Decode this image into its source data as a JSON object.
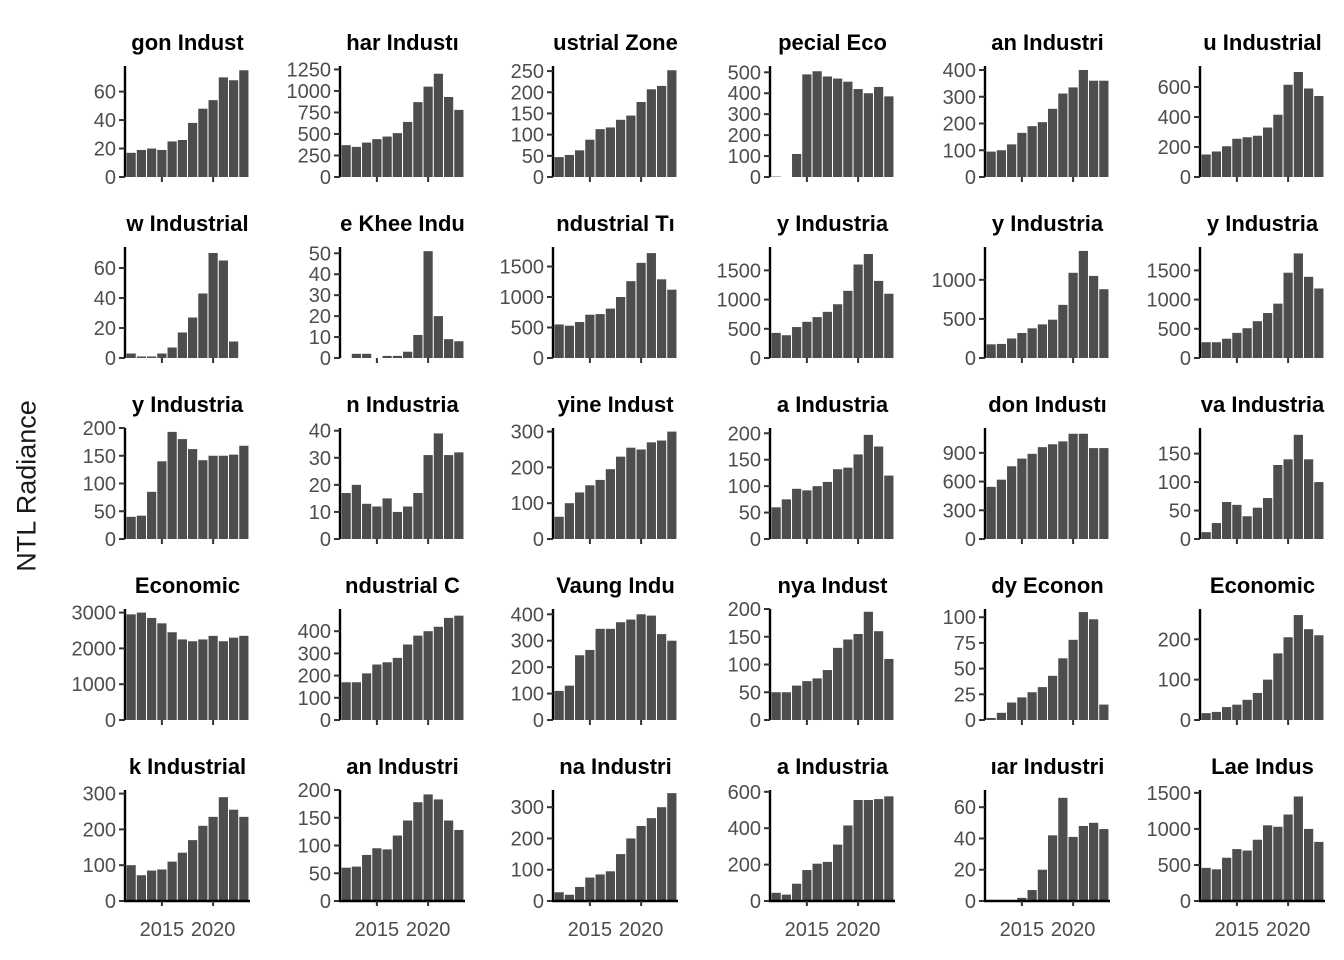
{
  "figure": {
    "ylabel": "NTL Radiance"
  },
  "chart_data": {
    "type": "bar",
    "layout": "facet-grid",
    "columns": 6,
    "bar_color": "#4d4d4d",
    "x": [
      2012,
      2013,
      2014,
      2015,
      2016,
      2017,
      2018,
      2019,
      2020,
      2021,
      2022,
      2023
    ],
    "x_ticks": [
      2015,
      2020
    ],
    "ylabel": "NTL Radiance",
    "panels": [
      {
        "title": "gon Indust",
        "ylim": [
          0,
          78
        ],
        "y_ticks": [
          0,
          20,
          40,
          60
        ],
        "values": [
          17,
          19,
          20,
          19,
          25,
          26,
          38,
          48,
          54,
          70,
          68,
          75
        ]
      },
      {
        "title": "har Industı",
        "ylim": [
          0,
          1290
        ],
        "y_ticks": [
          0,
          250,
          500,
          750,
          1000,
          1250
        ],
        "values": [
          370,
          350,
          400,
          440,
          470,
          510,
          640,
          870,
          1050,
          1200,
          930,
          780
        ]
      },
      {
        "title": "ustrial Zone",
        "ylim": [
          0,
          262
        ],
        "y_ticks": [
          0,
          50,
          100,
          150,
          200,
          250
        ],
        "values": [
          47,
          52,
          63,
          88,
          113,
          117,
          135,
          145,
          177,
          207,
          215,
          252
        ]
      },
      {
        "title": "pecial Eco",
        "ylim": [
          0,
          530
        ],
        "y_ticks": [
          0,
          100,
          200,
          300,
          400,
          500
        ],
        "values": [
          2,
          0,
          110,
          490,
          505,
          480,
          470,
          455,
          420,
          400,
          430,
          385
        ]
      },
      {
        "title": "an Industri",
        "ylim": [
          0,
          415
        ],
        "y_ticks": [
          0,
          100,
          200,
          300,
          400
        ],
        "values": [
          95,
          100,
          122,
          165,
          190,
          205,
          255,
          312,
          335,
          400,
          360,
          360
        ]
      },
      {
        "title": "u Industrial",
        "ylim": [
          0,
          740
        ],
        "y_ticks": [
          0,
          200,
          400,
          600
        ],
        "values": [
          150,
          170,
          205,
          255,
          265,
          275,
          330,
          415,
          615,
          700,
          590,
          540
        ]
      },
      {
        "title": "w Industrial",
        "ylim": [
          0,
          74
        ],
        "y_ticks": [
          0,
          20,
          40,
          60
        ],
        "values": [
          3,
          1,
          1,
          3,
          7,
          17,
          27,
          43,
          70,
          65,
          11,
          0
        ]
      },
      {
        "title": "e Khee Indu",
        "ylim": [
          0,
          53
        ],
        "y_ticks": [
          0,
          10,
          20,
          30,
          40,
          50
        ],
        "values": [
          0,
          2,
          2,
          0,
          1,
          1,
          3,
          11,
          51,
          20,
          9,
          8
        ]
      },
      {
        "title": "ndustrial Tı",
        "ylim": [
          0,
          1820
        ],
        "y_ticks": [
          0,
          500,
          1000,
          1500
        ],
        "values": [
          550,
          530,
          590,
          710,
          720,
          810,
          1000,
          1260,
          1560,
          1720,
          1290,
          1120
        ]
      },
      {
        "title": "y Industria",
        "ylim": [
          0,
          1900
        ],
        "y_ticks": [
          0,
          500,
          1000,
          1500
        ],
        "values": [
          430,
          390,
          530,
          620,
          700,
          790,
          920,
          1150,
          1600,
          1780,
          1320,
          1100
        ]
      },
      {
        "title": "y Industria",
        "ylim": [
          0,
          1420
        ],
        "y_ticks": [
          0,
          500,
          1000
        ],
        "values": [
          175,
          180,
          250,
          320,
          380,
          430,
          490,
          680,
          1090,
          1370,
          1050,
          880
        ]
      },
      {
        "title": "y Industria",
        "ylim": [
          0,
          1900
        ],
        "y_ticks": [
          0,
          500,
          1000,
          1500
        ],
        "values": [
          270,
          270,
          330,
          430,
          510,
          630,
          770,
          930,
          1460,
          1790,
          1390,
          1190
        ]
      },
      {
        "title": "y Industria",
        "ylim": [
          0,
          200
        ],
        "y_ticks": [
          0,
          50,
          100,
          150,
          200
        ],
        "values": [
          40,
          42,
          85,
          140,
          193,
          180,
          162,
          142,
          150,
          150,
          152,
          168
        ]
      },
      {
        "title": "n Industria",
        "ylim": [
          0,
          41
        ],
        "y_ticks": [
          0,
          10,
          20,
          30,
          40
        ],
        "values": [
          17,
          20,
          13,
          12,
          15,
          10,
          12,
          17,
          31,
          39,
          31,
          32
        ]
      },
      {
        "title": "yine Indust",
        "ylim": [
          0,
          310
        ],
        "y_ticks": [
          0,
          100,
          200,
          300
        ],
        "values": [
          62,
          100,
          130,
          150,
          165,
          195,
          230,
          255,
          250,
          270,
          275,
          300
        ]
      },
      {
        "title": "a Industria",
        "ylim": [
          0,
          210
        ],
        "y_ticks": [
          0,
          50,
          100,
          150,
          200
        ],
        "values": [
          60,
          75,
          95,
          92,
          100,
          108,
          132,
          135,
          160,
          197,
          175,
          120
        ]
      },
      {
        "title": "don Industı",
        "ylim": [
          0,
          1160
        ],
        "y_ticks": [
          0,
          300,
          600,
          900
        ],
        "values": [
          545,
          620,
          760,
          840,
          890,
          960,
          990,
          1020,
          1100,
          1100,
          950,
          950
        ]
      },
      {
        "title": "va Industria",
        "ylim": [
          0,
          195
        ],
        "y_ticks": [
          0,
          50,
          100,
          150
        ],
        "values": [
          12,
          28,
          65,
          60,
          40,
          55,
          72,
          130,
          140,
          183,
          140,
          100
        ]
      },
      {
        "title": "Economic",
        "ylim": [
          0,
          3100
        ],
        "y_ticks": [
          0,
          1000,
          2000,
          3000
        ],
        "values": [
          2950,
          3000,
          2850,
          2700,
          2450,
          2250,
          2200,
          2250,
          2350,
          2200,
          2300,
          2350
        ]
      },
      {
        "title": "ndustrial C",
        "ylim": [
          0,
          500
        ],
        "y_ticks": [
          0,
          100,
          200,
          300,
          400
        ],
        "values": [
          170,
          170,
          210,
          250,
          260,
          280,
          340,
          380,
          400,
          420,
          460,
          470
        ]
      },
      {
        "title": "Vaung Indu",
        "ylim": [
          0,
          420
        ],
        "y_ticks": [
          0,
          100,
          200,
          300,
          400
        ],
        "values": [
          110,
          130,
          245,
          265,
          345,
          345,
          370,
          380,
          400,
          395,
          325,
          300
        ]
      },
      {
        "title": "nya Indust",
        "ylim": [
          0,
          200
        ],
        "y_ticks": [
          0,
          50,
          100,
          150,
          200
        ],
        "values": [
          50,
          50,
          62,
          70,
          75,
          90,
          130,
          145,
          155,
          195,
          160,
          110
        ]
      },
      {
        "title": "dy Econon",
        "ylim": [
          0,
          108
        ],
        "y_ticks": [
          0,
          25,
          50,
          75,
          100
        ],
        "values": [
          2,
          7,
          17,
          22,
          27,
          32,
          43,
          60,
          78,
          105,
          98,
          15
        ]
      },
      {
        "title": "Economic",
        "ylim": [
          0,
          275
        ],
        "y_ticks": [
          0,
          100,
          200
        ],
        "values": [
          17,
          20,
          32,
          38,
          50,
          67,
          100,
          165,
          205,
          260,
          225,
          210
        ]
      },
      {
        "title": "k Industrial",
        "ylim": [
          0,
          310
        ],
        "y_ticks": [
          0,
          100,
          200,
          300
        ],
        "values": [
          100,
          72,
          85,
          88,
          110,
          135,
          170,
          210,
          235,
          290,
          255,
          235
        ]
      },
      {
        "title": "an Industri",
        "ylim": [
          0,
          200
        ],
        "y_ticks": [
          0,
          50,
          100,
          150,
          200
        ],
        "values": [
          60,
          62,
          83,
          95,
          93,
          118,
          145,
          178,
          192,
          183,
          145,
          128
        ]
      },
      {
        "title": "na Industri",
        "ylim": [
          0,
          355
        ],
        "y_ticks": [
          0,
          100,
          200,
          300
        ],
        "values": [
          28,
          20,
          45,
          75,
          85,
          95,
          150,
          200,
          240,
          265,
          300,
          345
        ]
      },
      {
        "title": "a Industria",
        "ylim": [
          0,
          610
        ],
        "y_ticks": [
          0,
          200,
          400,
          600
        ],
        "values": [
          45,
          35,
          95,
          170,
          205,
          215,
          310,
          415,
          555,
          555,
          560,
          575
        ]
      },
      {
        "title": "ıar Industri",
        "ylim": [
          0,
          71
        ],
        "y_ticks": [
          0,
          20,
          40,
          60
        ],
        "values": [
          0,
          0,
          0,
          2,
          7,
          20,
          42,
          66,
          41,
          48,
          50,
          46
        ]
      },
      {
        "title": "Lae Indus",
        "ylim": [
          0,
          1540
        ],
        "y_ticks": [
          0,
          500,
          1000,
          1500
        ],
        "values": [
          460,
          440,
          600,
          720,
          700,
          850,
          1050,
          1030,
          1200,
          1450,
          1000,
          820
        ]
      }
    ]
  }
}
